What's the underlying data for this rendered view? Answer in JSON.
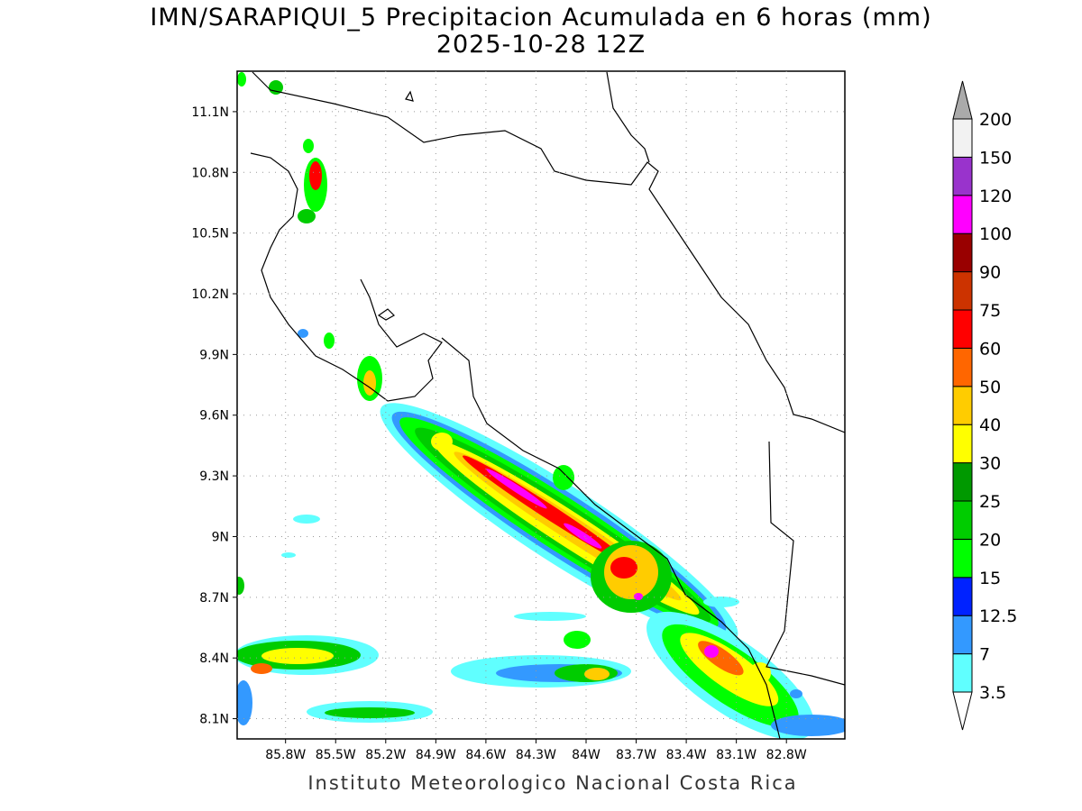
{
  "title": "IMN/SARAPIQUI_5 Precipitacion Acumulada en 6 horas (mm)",
  "subtitle": "2025-10-28 12Z",
  "credit": "Instituto Meteorologico Nacional Costa Rica",
  "map": {
    "lonlim": [
      -86.09,
      -82.45
    ],
    "latlim": [
      8.0,
      11.3
    ],
    "lat_ticks": [
      {
        "value": 11.1,
        "label": "11.1N"
      },
      {
        "value": 10.8,
        "label": "10.8N"
      },
      {
        "value": 10.5,
        "label": "10.5N"
      },
      {
        "value": 10.2,
        "label": "10.2N"
      },
      {
        "value": 9.9,
        "label": "9.9N"
      },
      {
        "value": 9.6,
        "label": "9.6N"
      },
      {
        "value": 9.3,
        "label": "9.3N"
      },
      {
        "value": 9,
        "label": "9N"
      },
      {
        "value": 8.7,
        "label": "8.7N"
      },
      {
        "value": 8.4,
        "label": "8.4N"
      },
      {
        "value": 8.1,
        "label": "8.1N"
      }
    ],
    "lon_ticks": [
      {
        "value": -85.8,
        "label": "85.8W"
      },
      {
        "value": -85.5,
        "label": "85.5W"
      },
      {
        "value": -85.2,
        "label": "85.2W"
      },
      {
        "value": -84.9,
        "label": "84.9W"
      },
      {
        "value": -84.6,
        "label": "84.6W"
      },
      {
        "value": -84.3,
        "label": "84.3W"
      },
      {
        "value": -84,
        "label": "84W"
      },
      {
        "value": -83.7,
        "label": "83.7W"
      },
      {
        "value": -83.4,
        "label": "83.4W"
      },
      {
        "value": -83.1,
        "label": "83.1W"
      },
      {
        "value": -82.8,
        "label": "82.8W"
      }
    ],
    "grid": true
  },
  "colorbar": {
    "levels": [
      3.5,
      7,
      12.5,
      15,
      20,
      25,
      30,
      40,
      50,
      60,
      75,
      90,
      100,
      120,
      150,
      200
    ],
    "colors": [
      "#60ffff",
      "#3399ff",
      "#0022ff",
      "#00ff00",
      "#00cc00",
      "#009900",
      "#ffff00",
      "#ffcc00",
      "#ff6600",
      "#ff0000",
      "#cc3300",
      "#990000",
      "#ff00ff",
      "#9933cc",
      "#f2f2f2"
    ],
    "under_color": "#ffffff",
    "over_color": "#aaaaaa"
  }
}
